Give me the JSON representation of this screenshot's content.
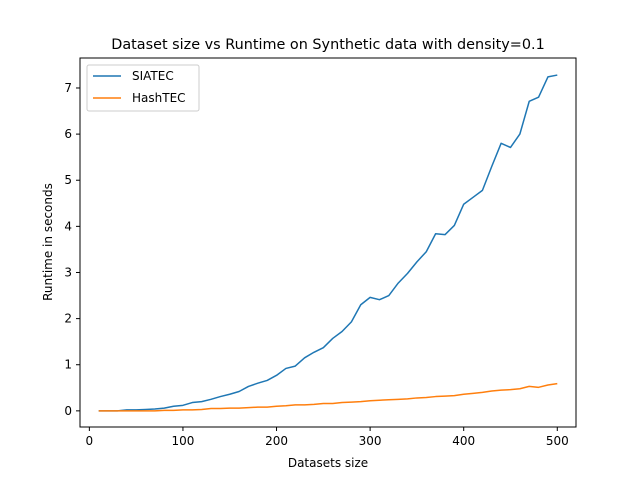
{
  "chart_data": {
    "type": "line",
    "title": "Dataset size vs Runtime on Synthetic data with density=0.1",
    "xlabel": "Datasets size",
    "ylabel": "Runtime in seconds",
    "xlim": [
      -10,
      520
    ],
    "ylim": [
      -0.35,
      7.65
    ],
    "xticks": [
      0,
      100,
      200,
      300,
      400,
      500
    ],
    "yticks": [
      0,
      1,
      2,
      3,
      4,
      5,
      6,
      7
    ],
    "grid": false,
    "legend_position": "top-left",
    "x": [
      10,
      20,
      30,
      40,
      50,
      60,
      70,
      80,
      90,
      100,
      110,
      120,
      130,
      140,
      150,
      160,
      170,
      180,
      190,
      200,
      210,
      220,
      230,
      240,
      250,
      260,
      270,
      280,
      290,
      300,
      310,
      320,
      330,
      340,
      350,
      360,
      370,
      380,
      390,
      400,
      410,
      420,
      430,
      440,
      450,
      460,
      470,
      480,
      490,
      500
    ],
    "series": [
      {
        "name": "SIATEC",
        "color": "#1f77b4",
        "values": [
          0.0,
          0.0,
          0.0,
          0.02,
          0.02,
          0.03,
          0.04,
          0.06,
          0.1,
          0.12,
          0.18,
          0.2,
          0.25,
          0.31,
          0.36,
          0.42,
          0.53,
          0.6,
          0.66,
          0.77,
          0.92,
          0.97,
          1.15,
          1.27,
          1.37,
          1.57,
          1.72,
          1.93,
          2.3,
          2.46,
          2.41,
          2.5,
          2.77,
          2.98,
          3.23,
          3.45,
          3.84,
          3.82,
          4.02,
          4.48,
          4.63,
          4.78,
          5.3,
          5.8,
          5.71,
          6.0,
          6.71,
          6.8,
          7.24,
          7.28
        ]
      },
      {
        "name": "HashTEC",
        "color": "#ff7f0e",
        "values": [
          0.0,
          0.0,
          0.0,
          0.0,
          0.0,
          0.0,
          0.0,
          0.01,
          0.01,
          0.02,
          0.02,
          0.03,
          0.05,
          0.05,
          0.06,
          0.06,
          0.07,
          0.08,
          0.08,
          0.1,
          0.11,
          0.13,
          0.13,
          0.14,
          0.16,
          0.16,
          0.18,
          0.19,
          0.2,
          0.22,
          0.23,
          0.24,
          0.25,
          0.26,
          0.28,
          0.29,
          0.31,
          0.32,
          0.33,
          0.36,
          0.38,
          0.4,
          0.43,
          0.45,
          0.46,
          0.48,
          0.53,
          0.51,
          0.56,
          0.59
        ]
      }
    ]
  }
}
